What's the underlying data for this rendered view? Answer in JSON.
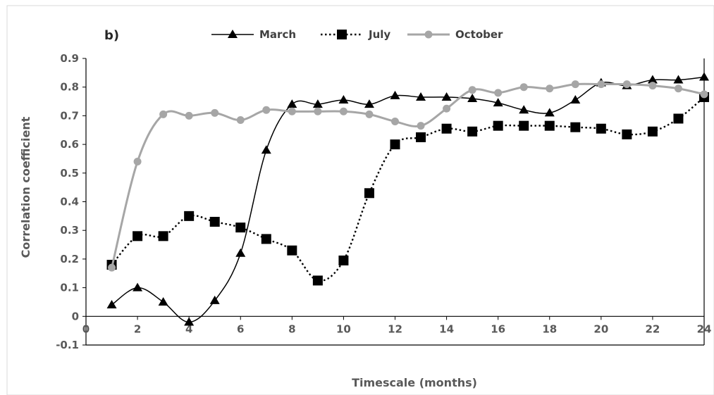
{
  "chart_data": {
    "type": "line",
    "panel_label": "b)",
    "title": "",
    "xlabel": "Timescale  (months)",
    "ylabel": "Correlation coefficient",
    "xlim": [
      0,
      24
    ],
    "ylim": [
      -0.1,
      0.9
    ],
    "x_ticks": [
      0,
      2,
      4,
      6,
      8,
      10,
      12,
      14,
      16,
      18,
      20,
      22,
      24
    ],
    "y_ticks": [
      -0.1,
      0,
      0.1,
      0.2,
      0.3,
      0.4,
      0.5,
      0.6,
      0.7,
      0.8,
      0.9
    ],
    "grid": false,
    "legend_position": "top",
    "x": [
      1,
      2,
      3,
      4,
      5,
      6,
      7,
      8,
      9,
      10,
      11,
      12,
      13,
      14,
      15,
      16,
      17,
      18,
      19,
      20,
      21,
      22,
      23,
      24
    ],
    "series": [
      {
        "name": "March",
        "marker": "triangle",
        "color": "#000000",
        "line_style": "solid",
        "values": [
          0.04,
          0.1,
          0.05,
          -0.02,
          0.055,
          0.22,
          0.58,
          0.74,
          0.74,
          0.755,
          0.74,
          0.77,
          0.765,
          0.765,
          0.76,
          0.745,
          0.72,
          0.71,
          0.755,
          0.815,
          0.805,
          0.825,
          0.825,
          0.835
        ]
      },
      {
        "name": "July",
        "marker": "square",
        "color": "#000000",
        "line_style": "dotted",
        "values": [
          0.18,
          0.28,
          0.28,
          0.35,
          0.33,
          0.31,
          0.27,
          0.23,
          0.125,
          0.195,
          0.43,
          0.6,
          0.625,
          0.655,
          0.645,
          0.665,
          0.665,
          0.665,
          0.66,
          0.655,
          0.635,
          0.645,
          0.69,
          0.765
        ]
      },
      {
        "name": "October",
        "marker": "circle",
        "color": "#a6a6a6",
        "line_style": "solid",
        "values": [
          0.17,
          0.54,
          0.705,
          0.7,
          0.71,
          0.685,
          0.72,
          0.715,
          0.715,
          0.715,
          0.705,
          0.68,
          0.665,
          0.725,
          0.79,
          0.78,
          0.8,
          0.795,
          0.81,
          0.81,
          0.81,
          0.805,
          0.795,
          0.775
        ]
      }
    ]
  }
}
